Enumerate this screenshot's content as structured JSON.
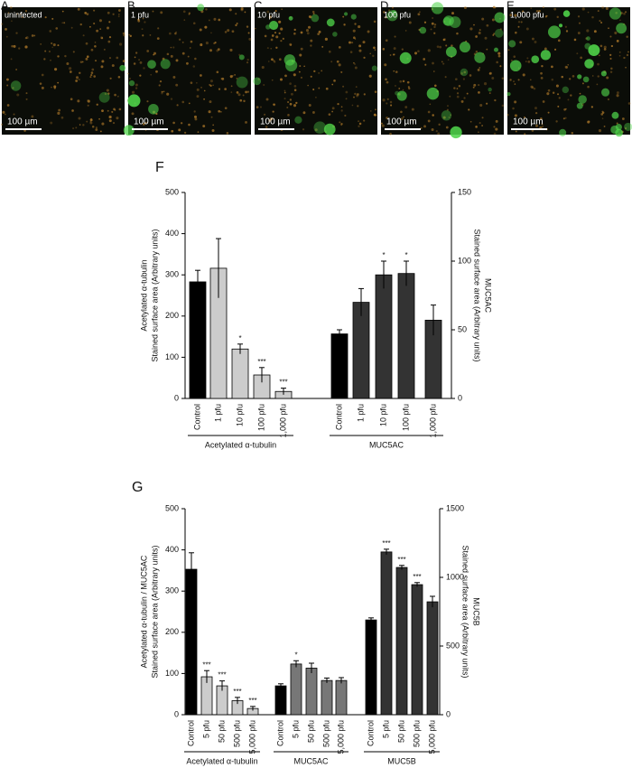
{
  "images": [
    {
      "letter": "A",
      "caption": "uninfected",
      "scale": "100 µm"
    },
    {
      "letter": "B",
      "caption": "1 pfu",
      "scale": "100 µm"
    },
    {
      "letter": "C",
      "caption": "10 pfu",
      "scale": "100 µm"
    },
    {
      "letter": "D",
      "caption": "100 pfu",
      "scale": "100 µm"
    },
    {
      "letter": "E",
      "caption": "1,000 pfu",
      "scale": "100 µm"
    }
  ],
  "chart_data": [
    {
      "type": "bar",
      "title": "F",
      "ylabel": [
        "Acetylated α-tubulin",
        "Stained surface area (Arbitrary units)"
      ],
      "y2label": [
        "MUC5AC",
        "Stained surface area (Arbitrary units)"
      ],
      "ylim": [
        0,
        500
      ],
      "yticks": [
        0,
        100,
        200,
        300,
        400,
        500
      ],
      "y2lim": [
        0,
        150
      ],
      "y2ticks": [
        0,
        50,
        100,
        150
      ],
      "groups": [
        {
          "name": "Acetylated α-tubulin",
          "axis": "y",
          "categories": [
            "Control",
            "1 pfu",
            "10 pfu",
            "100 pfu",
            "1,000 pfu"
          ],
          "values": [
            283,
            316,
            120,
            57,
            17
          ],
          "errors": [
            28,
            72,
            12,
            18,
            8
          ],
          "colors": [
            "#000000",
            "#cccccc",
            "#cccccc",
            "#cccccc",
            "#cccccc"
          ],
          "significance": [
            null,
            null,
            "*",
            "***",
            "***"
          ]
        },
        {
          "name": "MUC5AC",
          "axis": "y2",
          "categories": [
            "Control",
            "1 pfu",
            "10 pfu",
            "100 pfu",
            "1,000 pfu"
          ],
          "values": [
            47,
            70,
            90,
            91,
            57
          ],
          "errors": [
            3,
            10,
            10,
            9,
            11
          ],
          "colors": [
            "#000000",
            "#333333",
            "#333333",
            "#333333",
            "#333333"
          ],
          "significance": [
            null,
            null,
            "*",
            "*",
            null
          ]
        }
      ]
    },
    {
      "type": "bar",
      "title": "G",
      "ylabel": [
        "Acetylated α-tubulin / MUC5AC",
        "Stained surface area (Arbitrary units)"
      ],
      "y2label": [
        "MUC5B",
        "Stained surface area (Arbitrary units)"
      ],
      "ylim": [
        0,
        500
      ],
      "yticks": [
        0,
        100,
        200,
        300,
        400,
        500
      ],
      "y2lim": [
        0,
        1500
      ],
      "y2ticks": [
        0,
        500,
        1000,
        1500
      ],
      "groups": [
        {
          "name": "Acetylated α-tubulin",
          "axis": "y",
          "categories": [
            "Control",
            "5 pfu",
            "50 pfu",
            "500 pfu",
            "5,000 pfu"
          ],
          "values": [
            353,
            92,
            70,
            34,
            15
          ],
          "errors": [
            40,
            15,
            12,
            8,
            5
          ],
          "colors": [
            "#000000",
            "#cccccc",
            "#cccccc",
            "#cccccc",
            "#cccccc"
          ],
          "significance": [
            null,
            "***",
            "***",
            "***",
            "***"
          ]
        },
        {
          "name": "MUC5AC",
          "axis": "y",
          "categories": [
            "Control",
            "5 pfu",
            "50 pfu",
            "500 pfu",
            "5,000 pfu"
          ],
          "values": [
            70,
            123,
            113,
            83,
            83
          ],
          "errors": [
            5,
            8,
            12,
            6,
            7
          ],
          "colors": [
            "#000000",
            "#777777",
            "#777777",
            "#777777",
            "#777777"
          ],
          "significance": [
            null,
            "*",
            null,
            null,
            null
          ]
        },
        {
          "name": "MUC5B",
          "axis": "y2",
          "categories": [
            "Control",
            "5 pfu",
            "50 pfu",
            "500 pfu",
            "5,000 pfu"
          ],
          "values": [
            690,
            1185,
            1072,
            947,
            822
          ],
          "errors": [
            15,
            20,
            15,
            15,
            40
          ],
          "colors": [
            "#000000",
            "#333333",
            "#333333",
            "#333333",
            "#333333"
          ],
          "significance": [
            null,
            "***",
            "***",
            "***",
            null
          ]
        }
      ]
    }
  ]
}
